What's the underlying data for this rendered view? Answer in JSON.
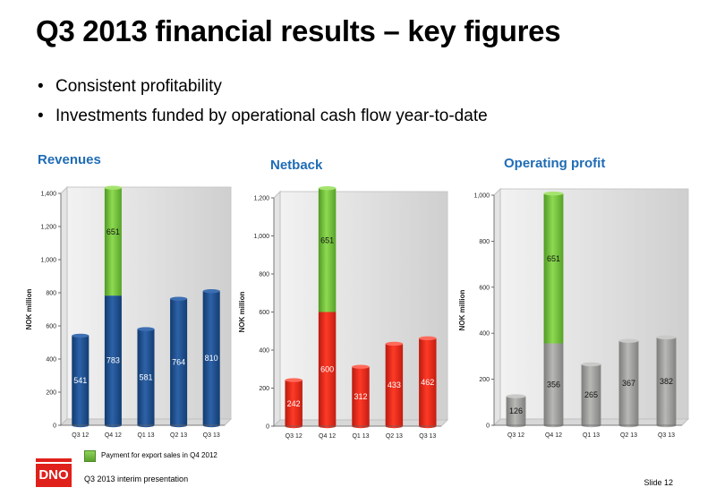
{
  "title": "Q3 2013 financial results – key figures",
  "bullets": [
    "Consistent profitability",
    "Investments funded by operational cash flow year-to-date"
  ],
  "legend": "Payment for export sales in Q4 2012",
  "footer": "Q3 2013 interim presentation",
  "slide": "Slide 12",
  "logo": "DNO",
  "colors": {
    "title_accent": "#1f6cb5",
    "highlight": "#6cbf3a",
    "revenues": "#1d4f8f",
    "netback": "#e02a1c",
    "operating_profit": "#9a9a98"
  },
  "chart_data": [
    {
      "type": "bar",
      "title": "Revenues",
      "ylabel": "NOK million",
      "categories": [
        "Q3 12",
        "Q4 12",
        "Q1 13",
        "Q2 13",
        "Q3 13"
      ],
      "ylim": [
        0,
        1400
      ],
      "yticks": [
        0,
        200,
        400,
        600,
        800,
        1000,
        1200,
        1400
      ],
      "ytick_labels": [
        "0",
        "200",
        "400",
        "600",
        "800",
        "1,000",
        "1,200",
        "1,400"
      ],
      "series": [
        {
          "values": [
            541,
            783,
            581,
            764,
            810
          ],
          "labels": [
            "541",
            "783",
            "581",
            "764",
            "810"
          ]
        },
        {
          "name": "Payment for export sales in Q4 2012",
          "values": [
            0,
            651,
            0,
            0,
            0
          ],
          "labels": [
            "",
            "651",
            "",
            "",
            ""
          ]
        }
      ]
    },
    {
      "type": "bar",
      "title": "Netback",
      "ylabel": "NOK million",
      "categories": [
        "Q3 12",
        "Q4 12",
        "Q1 13",
        "Q2 13",
        "Q3 13"
      ],
      "ylim": [
        0,
        1200
      ],
      "yticks": [
        0,
        200,
        400,
        600,
        800,
        1000,
        1200
      ],
      "ytick_labels": [
        "0",
        "200",
        "400",
        "600",
        "800",
        "1,000",
        "1,200"
      ],
      "series": [
        {
          "values": [
            242,
            600,
            312,
            433,
            462
          ],
          "labels": [
            "242",
            "600",
            "312",
            "433",
            "462"
          ]
        },
        {
          "name": "Payment for export sales in Q4 2012",
          "values": [
            0,
            651,
            0,
            0,
            0
          ],
          "labels": [
            "",
            "651",
            "",
            "",
            ""
          ]
        }
      ]
    },
    {
      "type": "bar",
      "title": "Operating profit",
      "ylabel": "NOK million",
      "categories": [
        "Q3 12",
        "Q4 12",
        "Q1 13",
        "Q2 13",
        "Q3 13"
      ],
      "ylim": [
        0,
        1000
      ],
      "yticks": [
        0,
        200,
        400,
        600,
        800,
        1000
      ],
      "ytick_labels": [
        "0",
        "200",
        "400",
        "600",
        "800",
        "1,000"
      ],
      "series": [
        {
          "values": [
            126,
            356,
            265,
            367,
            382
          ],
          "labels": [
            "126",
            "356",
            "265",
            "367",
            "382"
          ]
        },
        {
          "name": "Payment for export sales in Q4 2012",
          "values": [
            0,
            651,
            0,
            0,
            0
          ],
          "labels": [
            "",
            "651",
            "",
            "",
            ""
          ]
        }
      ]
    }
  ]
}
